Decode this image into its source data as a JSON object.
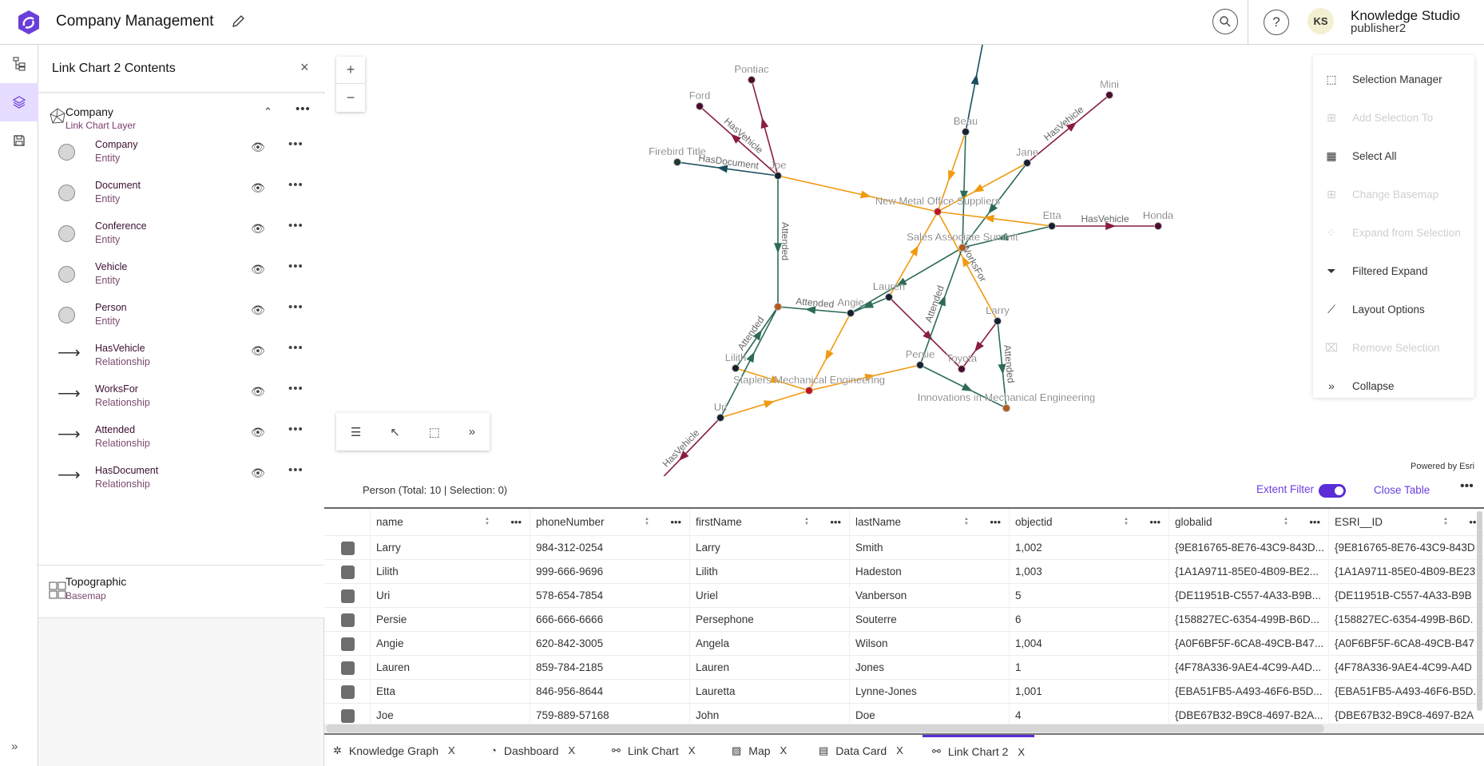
{
  "header": {
    "title": "Company Management",
    "user_initials": "KS",
    "user_name": "Knowledge Studio",
    "user_sub": "publisher2",
    "search_icon": "search-icon",
    "help_label": "?"
  },
  "panel": {
    "title": "Link Chart 2 Contents",
    "layer": {
      "name": "Company",
      "type": "Link Chart Layer"
    },
    "items": [
      {
        "name": "Company",
        "type": "Entity",
        "kind": "entity"
      },
      {
        "name": "Document",
        "type": "Entity",
        "kind": "entity"
      },
      {
        "name": "Conference",
        "type": "Entity",
        "kind": "entity"
      },
      {
        "name": "Vehicle",
        "type": "Entity",
        "kind": "entity"
      },
      {
        "name": "Person",
        "type": "Entity",
        "kind": "entity"
      },
      {
        "name": "HasVehicle",
        "type": "Relationship",
        "kind": "relationship"
      },
      {
        "name": "WorksFor",
        "type": "Relationship",
        "kind": "relationship"
      },
      {
        "name": "Attended",
        "type": "Relationship",
        "kind": "relationship"
      },
      {
        "name": "HasDocument",
        "type": "Relationship",
        "kind": "relationship"
      }
    ],
    "basemap": {
      "name": "Topographic",
      "type": "Basemap"
    }
  },
  "map": {
    "zoom_in": "+",
    "zoom_out": "−",
    "powered_by": "Powered by Esri",
    "menu": [
      {
        "label": "Selection Manager",
        "icon": "selection-manager-icon",
        "enabled": true
      },
      {
        "label": "Add Selection To",
        "icon": "add-selection-icon",
        "enabled": false
      },
      {
        "label": "Select All",
        "icon": "select-all-icon",
        "enabled": true
      },
      {
        "label": "Change Basemap",
        "icon": "basemap-icon",
        "enabled": false
      },
      {
        "label": "Expand from Selection",
        "icon": "expand-icon",
        "enabled": false
      },
      {
        "label": "Filtered Expand",
        "icon": "filter-icon",
        "enabled": true
      },
      {
        "label": "Layout Options",
        "icon": "layout-icon",
        "enabled": true
      },
      {
        "label": "Remove Selection",
        "icon": "remove-selection-icon",
        "enabled": false
      },
      {
        "label": "Collapse",
        "icon": "collapse-icon",
        "enabled": true
      }
    ]
  },
  "graph": {
    "colors": {
      "HasVehicle": "#8a1d3f",
      "WorksFor": "#f09a10",
      "Attended": "#2d6b58",
      "HasDocument": "#174e60",
      "Person": "#17202e",
      "Vehicle": "#4a0c2e",
      "Document": "#1f3a2c",
      "Company": "#c3121c",
      "Conference": "#b4581e"
    },
    "nodes": [
      {
        "id": "Pontiac",
        "label": "Pontiac",
        "type": "Vehicle"
      },
      {
        "id": "Ford",
        "label": "Ford",
        "type": "Vehicle"
      },
      {
        "id": "Firebird",
        "label": "Firebird Title",
        "type": "Document"
      },
      {
        "id": "Joe",
        "label": "Joe",
        "type": "Person"
      },
      {
        "id": "Beau",
        "label": "Beau",
        "type": "Person"
      },
      {
        "id": "Jane",
        "label": "Jane",
        "type": "Person"
      },
      {
        "id": "Mini",
        "label": "Mini",
        "type": "Vehicle"
      },
      {
        "id": "NMOS",
        "label": "New Metal Office Suppliers",
        "type": "Company"
      },
      {
        "id": "Etta",
        "label": "Etta",
        "type": "Person"
      },
      {
        "id": "Honda",
        "label": "Honda",
        "type": "Vehicle"
      },
      {
        "id": "SAS",
        "label": "Sales Associate Summit",
        "type": "Conference"
      },
      {
        "id": "Conf1",
        "label": "",
        "type": "Conference"
      },
      {
        "id": "Lauren",
        "label": "Lauren",
        "type": "Person"
      },
      {
        "id": "Angie",
        "label": "Angie",
        "type": "Person"
      },
      {
        "id": "Larry",
        "label": "Larry",
        "type": "Person"
      },
      {
        "id": "Lilith",
        "label": "Lilith",
        "type": "Person"
      },
      {
        "id": "Staplers",
        "label": "Staplers Mechanical Engineering",
        "type": "Company"
      },
      {
        "id": "Persie",
        "label": "Persie",
        "type": "Person"
      },
      {
        "id": "Toyota",
        "label": "Toyota",
        "type": "Vehicle"
      },
      {
        "id": "Innov",
        "label": "Innovations in Mechanical Engineering",
        "type": "Conference"
      },
      {
        "id": "Uri",
        "label": "Uri",
        "type": "Person"
      }
    ],
    "edges": [
      {
        "from": "Joe",
        "to": "Pontiac",
        "type": "HasVehicle",
        "label": ""
      },
      {
        "from": "Joe",
        "to": "Ford",
        "type": "HasVehicle",
        "label": "HasVehicle"
      },
      {
        "from": "Joe",
        "to": "Firebird",
        "type": "HasDocument",
        "label": "HasDocument"
      },
      {
        "from": "Joe",
        "to": "NMOS",
        "type": "WorksFor",
        "label": ""
      },
      {
        "from": "Joe",
        "to": "Conf1",
        "type": "Attended",
        "label": "Attended"
      },
      {
        "from": "Beau",
        "to": "BeauOut",
        "type": "HasDocument",
        "label": ""
      },
      {
        "from": "Beau",
        "to": "NMOS",
        "type": "WorksFor",
        "label": ""
      },
      {
        "from": "Beau",
        "to": "SAS",
        "type": "Attended",
        "label": ""
      },
      {
        "from": "Jane",
        "to": "Mini",
        "type": "HasVehicle",
        "label": "HasVehicle"
      },
      {
        "from": "Jane",
        "to": "NMOS",
        "type": "WorksFor",
        "label": ""
      },
      {
        "from": "Jane",
        "to": "SAS",
        "type": "Attended",
        "label": ""
      },
      {
        "from": "Etta",
        "to": "NMOS",
        "type": "WorksFor",
        "label": ""
      },
      {
        "from": "Etta",
        "to": "Honda",
        "type": "HasVehicle",
        "label": "HasVehicle"
      },
      {
        "from": "Etta",
        "to": "SAS",
        "type": "Attended",
        "label": ""
      },
      {
        "from": "Lauren",
        "to": "NMOS",
        "type": "WorksFor",
        "label": ""
      },
      {
        "from": "Lauren",
        "to": "Toyota",
        "type": "HasVehicle",
        "label": ""
      },
      {
        "from": "SAS",
        "to": "Angie",
        "type": "Attended",
        "label": ""
      },
      {
        "from": "Angie",
        "to": "Conf1",
        "type": "Attended",
        "label": "Attended"
      },
      {
        "from": "Lauren",
        "to": "Angie",
        "type": "Attended",
        "label": ""
      },
      {
        "from": "Angie",
        "to": "Staplers",
        "type": "WorksFor",
        "label": ""
      },
      {
        "from": "Larry",
        "to": "NMOS",
        "type": "WorksFor",
        "label": "WorksFor"
      },
      {
        "from": "Larry",
        "to": "Toyota",
        "type": "HasVehicle",
        "label": ""
      },
      {
        "from": "Larry",
        "to": "Innov",
        "type": "Attended",
        "label": "Attended"
      },
      {
        "from": "Persie",
        "to": "SAS",
        "type": "Attended",
        "label": "Attended"
      },
      {
        "from": "Persie",
        "to": "Innov",
        "type": "Attended",
        "label": ""
      },
      {
        "from": "Staplers",
        "to": "Persie",
        "type": "WorksFor",
        "label": ""
      },
      {
        "from": "Lilith",
        "to": "Conf1",
        "type": "Attended",
        "label": "Attended"
      },
      {
        "from": "Lilith",
        "to": "Staplers",
        "type": "WorksFor",
        "label": ""
      },
      {
        "from": "Uri",
        "to": "Conf1",
        "type": "Attended",
        "label": ""
      },
      {
        "from": "Uri",
        "to": "Staplers",
        "type": "WorksFor",
        "label": ""
      },
      {
        "from": "Uri",
        "to": "UriOut",
        "type": "HasVehicle",
        "label": "HasVehicle"
      }
    ]
  },
  "table": {
    "info": "Person (Total: 10 | Selection: 0)",
    "extent_filter": "Extent Filter",
    "extent_filter_on": true,
    "close": "Close Table",
    "more": "•••",
    "columns": [
      "name",
      "phoneNumber",
      "firstName",
      "lastName",
      "objectid",
      "globalid",
      "ESRI__ID"
    ],
    "rows": [
      [
        "Larry",
        "984-312-0254",
        "Larry",
        "Smith",
        "1,002",
        "{9E816765-8E76-43C9-843D...",
        "{9E816765-8E76-43C9-843D"
      ],
      [
        "Lilith",
        "999-666-9696",
        "Lilith",
        "Hadeston",
        "1,003",
        "{1A1A9711-85E0-4B09-BE2...",
        "{1A1A9711-85E0-4B09-BE23"
      ],
      [
        "Uri",
        "578-654-7854",
        "Uriel",
        "Vanberson",
        "5",
        "{DE11951B-C557-4A33-B9B...",
        "{DE11951B-C557-4A33-B9B"
      ],
      [
        "Persie",
        "666-666-6666",
        "Persephone",
        "Souterre",
        "6",
        "{158827EC-6354-499B-B6D...",
        "{158827EC-6354-499B-B6D."
      ],
      [
        "Angie",
        "620-842-3005",
        "Angela",
        "Wilson",
        "1,004",
        "{A0F6BF5F-6CA8-49CB-B47...",
        "{A0F6BF5F-6CA8-49CB-B47"
      ],
      [
        "Lauren",
        "859-784-2185",
        "Lauren",
        "Jones",
        "1",
        "{4F78A336-9AE4-4C99-A4D...",
        "{4F78A336-9AE4-4C99-A4D"
      ],
      [
        "Etta",
        "846-956-8644",
        "Lauretta",
        "Lynne-Jones",
        "1,001",
        "{EBA51FB5-A493-46F6-B5D...",
        "{EBA51FB5-A493-46F6-B5D."
      ],
      [
        "Joe",
        "759-889-57168",
        "John",
        "Doe",
        "4",
        "{DBE67B32-B9C8-4697-B2A...",
        "{DBE67B32-B9C8-4697-B2A"
      ]
    ]
  },
  "tabs": [
    {
      "label": "Knowledge Graph",
      "icon": "knowledge-graph-icon",
      "active": false
    },
    {
      "label": "Dashboard",
      "icon": "dashboard-icon",
      "active": false
    },
    {
      "label": "Link Chart",
      "icon": "link-chart-icon",
      "active": false
    },
    {
      "label": "Map",
      "icon": "map-icon",
      "active": false
    },
    {
      "label": "Data Card",
      "icon": "data-card-icon",
      "active": false
    },
    {
      "label": "Link Chart 2",
      "icon": "link-chart-icon",
      "active": true
    }
  ],
  "tab_close": "X"
}
